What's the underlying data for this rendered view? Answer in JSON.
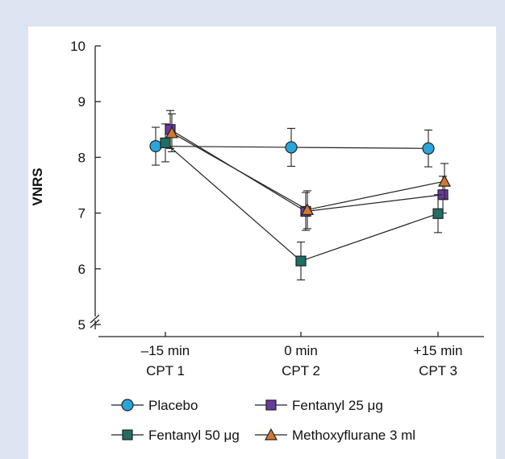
{
  "chart_data": {
    "type": "line",
    "ylabel": "VNRS",
    "ylim": [
      5,
      10
    ],
    "yticks": [
      5,
      6,
      7,
      8,
      9,
      10
    ],
    "y_axis_break": true,
    "grid": false,
    "legend_position": "bottom",
    "categories": [
      {
        "line1": "–15 min",
        "line2": "CPT 1"
      },
      {
        "line1": "0 min",
        "line2": "CPT 2"
      },
      {
        "line1": "+15 min",
        "line2": "CPT 3"
      }
    ],
    "series": [
      {
        "name": "Placebo",
        "marker": "circle",
        "color": "#2aa5dc",
        "values": [
          8.2,
          8.18,
          8.16
        ],
        "err": [
          0.34,
          0.34,
          0.33
        ]
      },
      {
        "name": "Fentanyl 25 μg",
        "marker": "square",
        "color": "#6a3aa0",
        "values": [
          8.5,
          7.03,
          7.33
        ],
        "err": [
          0.34,
          0.34,
          0.33
        ]
      },
      {
        "name": "Fentanyl 50 μg",
        "marker": "square",
        "color": "#1f6f63",
        "values": [
          8.26,
          6.14,
          6.99
        ],
        "err": [
          0.34,
          0.34,
          0.34
        ]
      },
      {
        "name": "Methoxyflurane 3 ml",
        "marker": "triangle",
        "color": "#d2782e",
        "values": [
          8.44,
          7.06,
          7.57
        ],
        "err": [
          0.34,
          0.34,
          0.32
        ]
      }
    ]
  }
}
